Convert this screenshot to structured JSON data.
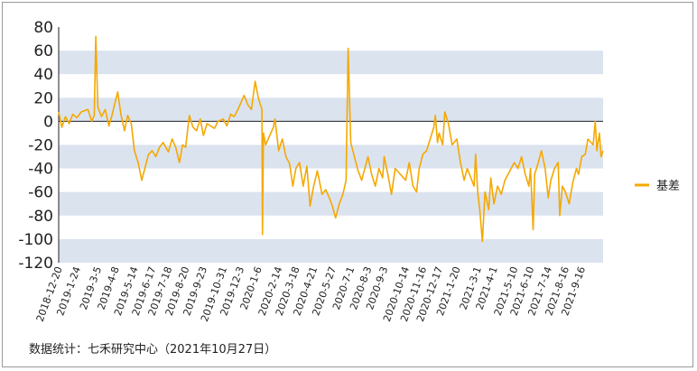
{
  "chart_data": {
    "type": "line",
    "title": "",
    "xlabel": "",
    "ylabel": "",
    "ylim": [
      -120,
      80
    ],
    "yticks": [
      80,
      60,
      40,
      20,
      0,
      -20,
      -40,
      -60,
      -80,
      -100,
      -120
    ],
    "xlim": [
      "2018-12-20",
      "2021-10-27"
    ],
    "xtick_labels": [
      "2018-12-20",
      "2019-1-24",
      "2019-3-5",
      "2019-4-8",
      "2019-5-14",
      "2019-6-17",
      "2019-7-18",
      "2019-8-20",
      "2019-9-23",
      "2019-10-31",
      "2019-12-3",
      "2020-1-6",
      "2020-2-14",
      "2020-3-18",
      "2020-4-21",
      "2020-5-27",
      "2020-7-1",
      "2020-8-3",
      "2020-9-3",
      "2020-10-14",
      "2020-11-16",
      "2020-12-17",
      "2021-1-20",
      "2021-3-1",
      "2021-4-1",
      "2021-5-10",
      "2021-6-10",
      "2021-7-14",
      "2021-8-16",
      "2021-9-16"
    ],
    "grid": "alternating horizontal bands",
    "legend_position": "right",
    "series": [
      {
        "name": "基差",
        "color": "#F5A800",
        "points": [
          [
            "2018-12-20",
            8
          ],
          [
            "2018-12-26",
            -5
          ],
          [
            "2019-1-2",
            4
          ],
          [
            "2019-1-9",
            -2
          ],
          [
            "2019-1-16",
            6
          ],
          [
            "2019-1-24",
            3
          ],
          [
            "2019-2-1",
            8
          ],
          [
            "2019-2-14",
            10
          ],
          [
            "2019-2-21",
            0
          ],
          [
            "2019-2-26",
            5
          ],
          [
            "2019-3-1",
            72
          ],
          [
            "2019-3-5",
            12
          ],
          [
            "2019-3-12",
            4
          ],
          [
            "2019-3-19",
            10
          ],
          [
            "2019-3-26",
            -4
          ],
          [
            "2019-4-1",
            5
          ],
          [
            "2019-4-8",
            18
          ],
          [
            "2019-4-12",
            25
          ],
          [
            "2019-4-18",
            6
          ],
          [
            "2019-4-25",
            -8
          ],
          [
            "2019-5-1",
            5
          ],
          [
            "2019-5-8",
            -2
          ],
          [
            "2019-5-14",
            -25
          ],
          [
            "2019-5-21",
            -35
          ],
          [
            "2019-5-28",
            -50
          ],
          [
            "2019-6-4",
            -38
          ],
          [
            "2019-6-10",
            -28
          ],
          [
            "2019-6-17",
            -25
          ],
          [
            "2019-6-24",
            -30
          ],
          [
            "2019-7-1",
            -22
          ],
          [
            "2019-7-8",
            -18
          ],
          [
            "2019-7-18",
            -26
          ],
          [
            "2019-7-25",
            -15
          ],
          [
            "2019-8-1",
            -22
          ],
          [
            "2019-8-8",
            -35
          ],
          [
            "2019-8-14",
            -20
          ],
          [
            "2019-8-20",
            -22
          ],
          [
            "2019-8-27",
            5
          ],
          [
            "2019-9-3",
            -5
          ],
          [
            "2019-9-10",
            -8
          ],
          [
            "2019-9-17",
            2
          ],
          [
            "2019-9-23",
            -12
          ],
          [
            "2019-9-30",
            -2
          ],
          [
            "2019-10-14",
            -6
          ],
          [
            "2019-10-21",
            0
          ],
          [
            "2019-10-31",
            2
          ],
          [
            "2019-11-7",
            -4
          ],
          [
            "2019-11-14",
            6
          ],
          [
            "2019-11-21",
            4
          ],
          [
            "2019-11-28",
            10
          ],
          [
            "2019-12-3",
            15
          ],
          [
            "2019-12-10",
            22
          ],
          [
            "2019-12-17",
            14
          ],
          [
            "2019-12-24",
            10
          ],
          [
            "2019-12-31",
            34
          ],
          [
            "2020-1-6",
            20
          ],
          [
            "2020-1-13",
            10
          ],
          [
            "2020-1-14",
            -96
          ],
          [
            "2020-1-16",
            -10
          ],
          [
            "2020-1-20",
            -20
          ],
          [
            "2020-2-4",
            -5
          ],
          [
            "2020-2-7",
            2
          ],
          [
            "2020-2-14",
            -25
          ],
          [
            "2020-2-21",
            -15
          ],
          [
            "2020-2-28",
            -30
          ],
          [
            "2020-3-6",
            -36
          ],
          [
            "2020-3-12",
            -55
          ],
          [
            "2020-3-18",
            -40
          ],
          [
            "2020-3-25",
            -35
          ],
          [
            "2020-4-1",
            -55
          ],
          [
            "2020-4-8",
            -38
          ],
          [
            "2020-4-14",
            -72
          ],
          [
            "2020-4-21",
            -55
          ],
          [
            "2020-4-28",
            -42
          ],
          [
            "2020-5-7",
            -62
          ],
          [
            "2020-5-14",
            -58
          ],
          [
            "2020-5-21",
            -65
          ],
          [
            "2020-5-27",
            -72
          ],
          [
            "2020-6-2",
            -82
          ],
          [
            "2020-6-9",
            -70
          ],
          [
            "2020-6-16",
            -62
          ],
          [
            "2020-6-22",
            -50
          ],
          [
            "2020-6-26",
            62
          ],
          [
            "2020-7-1",
            -18
          ],
          [
            "2020-7-8",
            -30
          ],
          [
            "2020-7-15",
            -42
          ],
          [
            "2020-7-22",
            -50
          ],
          [
            "2020-7-28",
            -40
          ],
          [
            "2020-8-3",
            -30
          ],
          [
            "2020-8-10",
            -45
          ],
          [
            "2020-8-17",
            -55
          ],
          [
            "2020-8-24",
            -40
          ],
          [
            "2020-8-31",
            -48
          ],
          [
            "2020-9-3",
            -30
          ],
          [
            "2020-9-10",
            -45
          ],
          [
            "2020-9-17",
            -62
          ],
          [
            "2020-9-24",
            -40
          ],
          [
            "2020-10-14",
            -50
          ],
          [
            "2020-10-21",
            -35
          ],
          [
            "2020-10-28",
            -55
          ],
          [
            "2020-11-4",
            -60
          ],
          [
            "2020-11-9",
            -40
          ],
          [
            "2020-11-16",
            -28
          ],
          [
            "2020-11-23",
            -25
          ],
          [
            "2020-11-30",
            -15
          ],
          [
            "2020-12-7",
            -5
          ],
          [
            "2020-12-10",
            5
          ],
          [
            "2020-12-14",
            -18
          ],
          [
            "2020-12-17",
            -10
          ],
          [
            "2020-12-24",
            -20
          ],
          [
            "2020-12-28",
            8
          ],
          [
            "2021-1-4",
            -2
          ],
          [
            "2021-1-11",
            -20
          ],
          [
            "2021-1-20",
            -15
          ],
          [
            "2021-1-27",
            -35
          ],
          [
            "2021-2-3",
            -50
          ],
          [
            "2021-2-9",
            -40
          ],
          [
            "2021-2-22",
            -55
          ],
          [
            "2021-2-25",
            -28
          ],
          [
            "2021-3-1",
            -60
          ],
          [
            "2021-3-5",
            -75
          ],
          [
            "2021-3-10",
            -102
          ],
          [
            "2021-3-15",
            -60
          ],
          [
            "2021-3-22",
            -75
          ],
          [
            "2021-3-26",
            -48
          ],
          [
            "2021-4-1",
            -70
          ],
          [
            "2021-4-8",
            -55
          ],
          [
            "2021-4-15",
            -62
          ],
          [
            "2021-4-22",
            -50
          ],
          [
            "2021-4-28",
            -45
          ],
          [
            "2021-5-10",
            -35
          ],
          [
            "2021-5-17",
            -40
          ],
          [
            "2021-5-24",
            -30
          ],
          [
            "2021-5-31",
            -45
          ],
          [
            "2021-6-7",
            -55
          ],
          [
            "2021-6-10",
            -40
          ],
          [
            "2021-6-15",
            -92
          ],
          [
            "2021-6-18",
            -45
          ],
          [
            "2021-6-25",
            -35
          ],
          [
            "2021-7-1",
            -25
          ],
          [
            "2021-7-8",
            -40
          ],
          [
            "2021-7-14",
            -65
          ],
          [
            "2021-7-19",
            -50
          ],
          [
            "2021-7-26",
            -40
          ],
          [
            "2021-8-2",
            -35
          ],
          [
            "2021-8-5",
            -80
          ],
          [
            "2021-8-10",
            -55
          ],
          [
            "2021-8-16",
            -60
          ],
          [
            "2021-8-23",
            -70
          ],
          [
            "2021-8-30",
            -52
          ],
          [
            "2021-9-6",
            -40
          ],
          [
            "2021-9-10",
            -45
          ],
          [
            "2021-9-16",
            -30
          ],
          [
            "2021-9-23",
            -28
          ],
          [
            "2021-9-28",
            -15
          ],
          [
            "2021-10-8",
            -20
          ],
          [
            "2021-10-12",
            0
          ],
          [
            "2021-10-15",
            -25
          ],
          [
            "2021-10-20",
            -10
          ],
          [
            "2021-10-23",
            -30
          ],
          [
            "2021-10-27",
            -25
          ]
        ]
      }
    ]
  },
  "legend": {
    "label": "基差"
  },
  "footnote": "数据统计：七禾研究中心（2021年10月27日）"
}
